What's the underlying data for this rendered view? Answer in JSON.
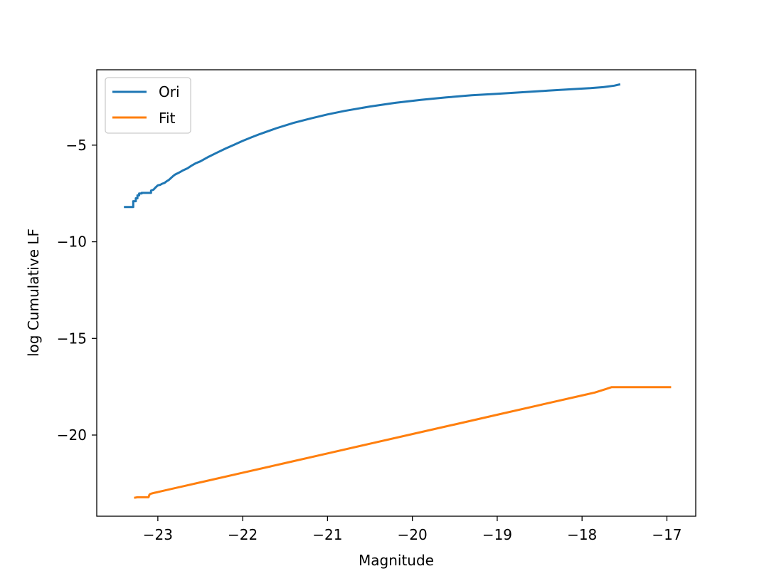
{
  "chart_data": {
    "type": "line",
    "title": "",
    "xlabel": "Magnitude",
    "ylabel": "log Cumulative LF",
    "xlim": [
      -23.72,
      -16.66
    ],
    "ylim": [
      -24.2,
      -1.1
    ],
    "xticks": [
      -23,
      -22,
      -21,
      -20,
      -19,
      -18,
      -17
    ],
    "xtick_labels": [
      "−23",
      "−22",
      "−21",
      "−20",
      "−19",
      "−18",
      "−17"
    ],
    "yticks": [
      -5,
      -10,
      -15,
      -20
    ],
    "ytick_labels": [
      "−5",
      "−10",
      "−15",
      "−20"
    ],
    "grid": false,
    "legend_position": "upper left",
    "series": [
      {
        "name": "Ori",
        "color": "#1f77b4",
        "x": [
          -23.4,
          -23.32,
          -23.32,
          -23.29,
          -23.29,
          -23.26,
          -23.26,
          -23.24,
          -23.24,
          -23.22,
          -23.22,
          -23.19,
          -23.19,
          -23.16,
          -23.16,
          -23.08,
          -23.08,
          -23.05,
          -23.03,
          -23.01,
          -23.0,
          -22.97,
          -22.95,
          -22.92,
          -22.9,
          -22.87,
          -22.85,
          -22.82,
          -22.8,
          -22.75,
          -22.7,
          -22.65,
          -22.6,
          -22.55,
          -22.5,
          -22.4,
          -22.3,
          -22.2,
          -22.1,
          -22.0,
          -21.9,
          -21.8,
          -21.6,
          -21.4,
          -21.2,
          -21.0,
          -20.8,
          -20.5,
          -20.2,
          -19.9,
          -19.6,
          -19.3,
          -19.0,
          -18.7,
          -18.4,
          -18.1,
          -17.9,
          -17.75,
          -17.62,
          -17.55
        ],
        "y": [
          -8.2,
          -8.2,
          -8.2,
          -8.2,
          -7.9,
          -7.9,
          -7.75,
          -7.75,
          -7.6,
          -7.6,
          -7.5,
          -7.5,
          -7.47,
          -7.47,
          -7.47,
          -7.47,
          -7.35,
          -7.3,
          -7.2,
          -7.12,
          -7.08,
          -7.05,
          -7.0,
          -6.95,
          -6.88,
          -6.8,
          -6.72,
          -6.6,
          -6.53,
          -6.42,
          -6.3,
          -6.2,
          -6.05,
          -5.93,
          -5.84,
          -5.6,
          -5.38,
          -5.17,
          -4.98,
          -4.78,
          -4.6,
          -4.43,
          -4.12,
          -3.85,
          -3.62,
          -3.41,
          -3.23,
          -3.0,
          -2.81,
          -2.66,
          -2.53,
          -2.42,
          -2.34,
          -2.26,
          -2.18,
          -2.1,
          -2.05,
          -2.0,
          -1.92,
          -1.85
        ]
      },
      {
        "name": "Fit",
        "color": "#ff7f0e",
        "x": [
          -23.28,
          -23.24,
          -23.2,
          -23.16,
          -23.13,
          -23.11,
          -23.1,
          -23.09,
          -23.07,
          -23.05,
          -23.02,
          -23.0,
          -22.95,
          -22.5,
          -22.0,
          -21.5,
          -21.0,
          -20.5,
          -20.0,
          -19.5,
          -19.0,
          -18.5,
          -18.0,
          -17.85,
          -17.72,
          -17.65,
          -17.6,
          -17.5,
          -17.2,
          -16.95
        ],
        "y": [
          -23.25,
          -23.22,
          -23.22,
          -23.22,
          -23.22,
          -23.22,
          -23.1,
          -23.05,
          -23.02,
          -23.0,
          -22.97,
          -22.95,
          -22.9,
          -22.45,
          -21.95,
          -21.45,
          -20.95,
          -20.45,
          -19.95,
          -19.45,
          -18.95,
          -18.45,
          -17.95,
          -17.8,
          -17.62,
          -17.52,
          -17.52,
          -17.52,
          -17.52,
          -17.52
        ]
      }
    ]
  }
}
